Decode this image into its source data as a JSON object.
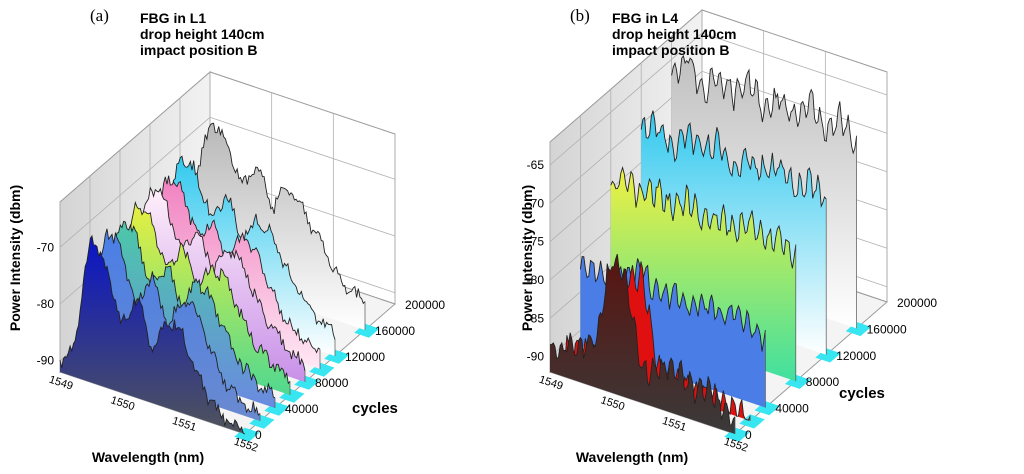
{
  "panels": [
    {
      "panel_label": "(a)",
      "title_lines": [
        "FBG in L1",
        "drop height 140cm",
        "impact position B"
      ]
    },
    {
      "panel_label": "(b)",
      "title_lines": [
        "FBG in L4",
        "drop height 140cm",
        "impact position B"
      ]
    }
  ],
  "chart_data": [
    {
      "type": "area",
      "subtype": "3d-waterfall",
      "title": "FBG in L1 drop height 140cm impact position B",
      "xlabel": "Wavelength (nm)",
      "ylabel": "Power Intensity (dbm)",
      "zlabel": "cycles",
      "x_ticks": [
        "1549",
        "1550",
        "1551",
        "1552"
      ],
      "xlim": [
        1549,
        1552
      ],
      "y_ticks": [
        "-90",
        "-80",
        "-70"
      ],
      "ylim": [
        -92,
        -62
      ],
      "z_ticks": [
        "0",
        "40000",
        "80000",
        "120000",
        "160000",
        "200000"
      ],
      "zlim": [
        0,
        200000
      ],
      "grid": true,
      "wavelengths": [
        1549.0,
        1549.25,
        1549.5,
        1549.75,
        1550.0,
        1550.25,
        1550.5,
        1550.75,
        1551.0,
        1551.25,
        1551.5,
        1551.75,
        1552.0
      ],
      "series": [
        {
          "cycles": 0,
          "color_top": "#0a14c8",
          "color_bottom": "#50545a",
          "values": [
            -91,
            -86,
            -66,
            -71,
            -80,
            -74,
            -83,
            -76,
            -78,
            -85,
            -89,
            -91,
            -92
          ]
        },
        {
          "cycles": 20000,
          "color_top": "#4a7ee6",
          "color_bottom": "#6a8ad0",
          "values": [
            -90,
            -84,
            -67,
            -70,
            -79,
            -72,
            -81,
            -75,
            -77,
            -84,
            -88,
            -90,
            -91
          ]
        },
        {
          "cycles": 40000,
          "color_top": "#4cc8a8",
          "color_bottom": "#6a8ae0",
          "values": [
            -89,
            -83,
            -68,
            -70,
            -78,
            -73,
            -80,
            -74,
            -77,
            -83,
            -87,
            -89,
            -90
          ]
        },
        {
          "cycles": 60000,
          "color_top": "#e8f040",
          "color_bottom": "#50d890",
          "values": [
            -88,
            -82,
            -67,
            -69,
            -77,
            -72,
            -79,
            -74,
            -76,
            -82,
            -86,
            -88,
            -89
          ]
        },
        {
          "cycles": 80000,
          "color_top": "#fff0fa",
          "color_bottom": "#c890e8",
          "values": [
            -88,
            -80,
            -66,
            -69,
            -76,
            -71,
            -78,
            -73,
            -75,
            -81,
            -85,
            -88,
            -89
          ]
        },
        {
          "cycles": 100000,
          "color_top": "#f080c0",
          "color_bottom": "#ffe8f4",
          "values": [
            -88,
            -80,
            -67,
            -68,
            -76,
            -72,
            -78,
            -73,
            -76,
            -82,
            -86,
            -88,
            -89
          ]
        },
        {
          "cycles": 120000,
          "color_top": "#30c8ee",
          "color_bottom": "#ffffff",
          "values": [
            -87,
            -78,
            -65,
            -68,
            -75,
            -70,
            -77,
            -72,
            -75,
            -80,
            -84,
            -87,
            -88
          ]
        },
        {
          "cycles": 160000,
          "color_top": "#b8b8b8",
          "color_bottom": "#ffffff",
          "values": [
            -86,
            -76,
            -64,
            -67,
            -74,
            -69,
            -76,
            -71,
            -74,
            -79,
            -83,
            -86,
            -87
          ]
        }
      ]
    },
    {
      "type": "area",
      "subtype": "3d-waterfall",
      "title": "FBG in L4 drop height 140cm impact position B",
      "xlabel": "Wavelength (nm)",
      "ylabel": "Power Intensity (dbm)",
      "zlabel": "cycles",
      "x_ticks": [
        "1549",
        "1550",
        "1551",
        "1552"
      ],
      "xlim": [
        1549,
        1552
      ],
      "y_ticks": [
        "-90",
        "-85",
        "-80",
        "-75",
        "-70",
        "-65"
      ],
      "ylim": [
        -92,
        -62
      ],
      "z_ticks": [
        "0",
        "40000",
        "80000",
        "120000",
        "160000",
        "200000"
      ],
      "zlim": [
        0,
        200000
      ],
      "grid": true,
      "wavelengths": [
        1549.0,
        1549.25,
        1549.5,
        1549.75,
        1550.0,
        1550.25,
        1550.5,
        1550.75,
        1551.0,
        1551.25,
        1551.5,
        1551.75,
        1552.0
      ],
      "series": [
        {
          "cycles": 0,
          "color_top": "#5a1410",
          "color_bottom": "#3a3a3a",
          "values": [
            -89,
            -88,
            -87,
            -86,
            -74,
            -77,
            -88,
            -87,
            -86,
            -88,
            -87,
            -89,
            -90
          ]
        },
        {
          "cycles": 20000,
          "color_top": "#e01010",
          "color_bottom": "#e01010",
          "values": [
            -91,
            -90,
            -90,
            -89,
            -79,
            -78,
            -89,
            -90,
            -90,
            -90,
            -91,
            -91,
            -92
          ]
        },
        {
          "cycles": 40000,
          "color_top": "#4a7ee6",
          "color_bottom": "#4a7ee6",
          "values": [
            -82,
            -81,
            -82,
            -81,
            -80,
            -82,
            -81,
            -82,
            -81,
            -82,
            -81,
            -82,
            -83
          ]
        },
        {
          "cycles": 80000,
          "color_top": "#f0f040",
          "color_bottom": "#40e0a0",
          "values": [
            -75,
            -73,
            -75,
            -73,
            -75,
            -73,
            -75,
            -74,
            -75,
            -73,
            -75,
            -74,
            -76
          ]
        },
        {
          "cycles": 120000,
          "color_top": "#30c8ee",
          "color_bottom": "#ffffff",
          "values": [
            -71,
            -69,
            -72,
            -69,
            -71,
            -69,
            -72,
            -70,
            -71,
            -69,
            -72,
            -70,
            -72
          ]
        },
        {
          "cycles": 160000,
          "color_top": "#c0c0c0",
          "color_bottom": "#ffffff",
          "values": [
            -67,
            -64,
            -68,
            -65,
            -67,
            -64,
            -68,
            -65,
            -67,
            -64,
            -68,
            -65,
            -68
          ]
        }
      ]
    }
  ]
}
